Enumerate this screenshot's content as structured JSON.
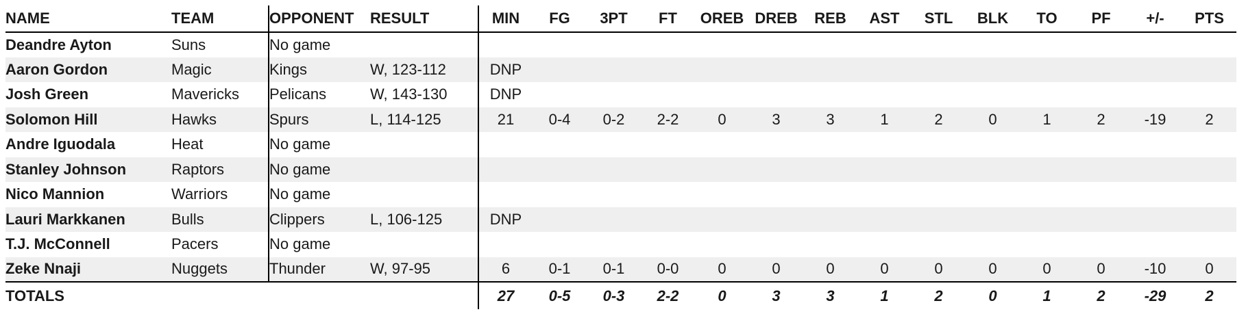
{
  "colors": {
    "stripe": "#efefef",
    "text": "#191919",
    "border": "#000000",
    "background": "#ffffff"
  },
  "table": {
    "columns": [
      {
        "key": "name",
        "label": "NAME"
      },
      {
        "key": "team",
        "label": "TEAM"
      },
      {
        "key": "opponent",
        "label": "OPPONENT"
      },
      {
        "key": "result",
        "label": "RESULT"
      },
      {
        "key": "min",
        "label": "MIN"
      },
      {
        "key": "fg",
        "label": "FG"
      },
      {
        "key": "3pt",
        "label": "3PT"
      },
      {
        "key": "ft",
        "label": "FT"
      },
      {
        "key": "oreb",
        "label": "OREB"
      },
      {
        "key": "dreb",
        "label": "DREB"
      },
      {
        "key": "reb",
        "label": "REB"
      },
      {
        "key": "ast",
        "label": "AST"
      },
      {
        "key": "stl",
        "label": "STL"
      },
      {
        "key": "blk",
        "label": "BLK"
      },
      {
        "key": "to",
        "label": "TO"
      },
      {
        "key": "pf",
        "label": "PF"
      },
      {
        "key": "plus_minus",
        "label": "+/-"
      },
      {
        "key": "pts",
        "label": "PTS"
      }
    ],
    "rows": [
      {
        "name": "Deandre Ayton",
        "team": "Suns",
        "opponent": "No game",
        "result": "",
        "stats": [
          "",
          "",
          "",
          "",
          "",
          "",
          "",
          "",
          "",
          "",
          "",
          "",
          "",
          ""
        ]
      },
      {
        "name": "Aaron Gordon",
        "team": "Magic",
        "opponent": "Kings",
        "result": "W, 123-112",
        "stats": [
          "DNP",
          "",
          "",
          "",
          "",
          "",
          "",
          "",
          "",
          "",
          "",
          "",
          "",
          ""
        ]
      },
      {
        "name": "Josh Green",
        "team": "Mavericks",
        "opponent": "Pelicans",
        "result": "W, 143-130",
        "stats": [
          "DNP",
          "",
          "",
          "",
          "",
          "",
          "",
          "",
          "",
          "",
          "",
          "",
          "",
          ""
        ]
      },
      {
        "name": "Solomon Hill",
        "team": "Hawks",
        "opponent": "Spurs",
        "result": "L, 114-125",
        "stats": [
          "21",
          "0-4",
          "0-2",
          "2-2",
          "0",
          "3",
          "3",
          "1",
          "2",
          "0",
          "1",
          "2",
          "-19",
          "2"
        ]
      },
      {
        "name": "Andre Iguodala",
        "team": "Heat",
        "opponent": "No game",
        "result": "",
        "stats": [
          "",
          "",
          "",
          "",
          "",
          "",
          "",
          "",
          "",
          "",
          "",
          "",
          "",
          ""
        ]
      },
      {
        "name": "Stanley Johnson",
        "team": "Raptors",
        "opponent": "No game",
        "result": "",
        "stats": [
          "",
          "",
          "",
          "",
          "",
          "",
          "",
          "",
          "",
          "",
          "",
          "",
          "",
          ""
        ]
      },
      {
        "name": "Nico Mannion",
        "team": "Warriors",
        "opponent": "No game",
        "result": "",
        "stats": [
          "",
          "",
          "",
          "",
          "",
          "",
          "",
          "",
          "",
          "",
          "",
          "",
          "",
          ""
        ]
      },
      {
        "name": "Lauri Markkanen",
        "team": "Bulls",
        "opponent": "Clippers",
        "result": "L, 106-125",
        "stats": [
          "DNP",
          "",
          "",
          "",
          "",
          "",
          "",
          "",
          "",
          "",
          "",
          "",
          "",
          ""
        ]
      },
      {
        "name": "T.J. McConnell",
        "team": "Pacers",
        "opponent": "No game",
        "result": "",
        "stats": [
          "",
          "",
          "",
          "",
          "",
          "",
          "",
          "",
          "",
          "",
          "",
          "",
          "",
          ""
        ]
      },
      {
        "name": "Zeke Nnaji",
        "team": "Nuggets",
        "opponent": "Thunder",
        "result": "W, 97-95",
        "stats": [
          "6",
          "0-1",
          "0-1",
          "0-0",
          "0",
          "0",
          "0",
          "0",
          "0",
          "0",
          "0",
          "0",
          "-10",
          "0"
        ]
      }
    ],
    "totals": {
      "label": "TOTALS",
      "stats": [
        "27",
        "0-5",
        "0-3",
        "2-2",
        "0",
        "3",
        "3",
        "1",
        "2",
        "0",
        "1",
        "2",
        "-29",
        "2"
      ]
    }
  }
}
